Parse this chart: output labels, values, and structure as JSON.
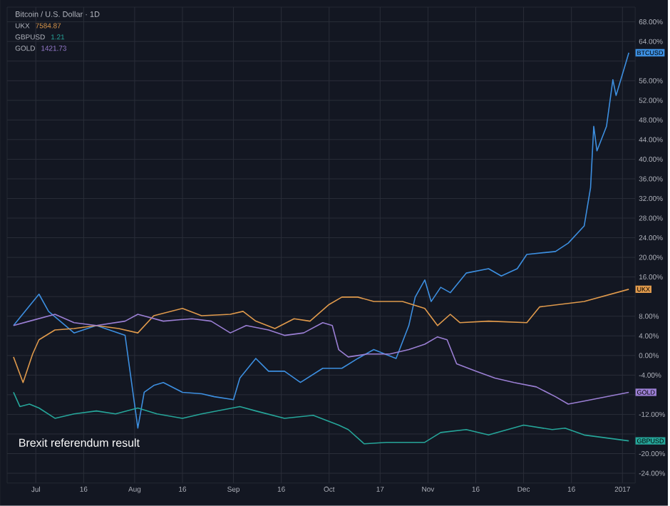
{
  "chart_data": {
    "type": "line",
    "title": "Bitcoin / U.S. Dollar · 1D",
    "annotations": [
      "Brexit referendum result",
      "7584.87",
      "1.21",
      "1421.73"
    ],
    "grid": true,
    "xlim": [
      "2016-06-22",
      "2017-01-05"
    ],
    "ylim": [
      -26,
      71
    ],
    "xticks": [
      {
        "value": "2016-07-01",
        "label": "Jul"
      },
      {
        "value": "2016-07-16",
        "label": "16"
      },
      {
        "value": "2016-08-01",
        "label": "Aug"
      },
      {
        "value": "2016-08-16",
        "label": "16"
      },
      {
        "value": "2016-09-01",
        "label": "Sep"
      },
      {
        "value": "2016-09-16",
        "label": "16"
      },
      {
        "value": "2016-10-01",
        "label": "Oct"
      },
      {
        "value": "2016-10-17",
        "label": "17"
      },
      {
        "value": "2016-11-01",
        "label": "Nov"
      },
      {
        "value": "2016-11-16",
        "label": "16"
      },
      {
        "value": "2016-12-01",
        "label": "Dec"
      },
      {
        "value": "2016-12-16",
        "label": "16"
      },
      {
        "value": "2017-01-01",
        "label": "2017"
      }
    ],
    "yticks": [
      {
        "value": -24,
        "label": "-24.00%"
      },
      {
        "value": -20,
        "label": "-20.00%"
      },
      {
        "value": -16,
        "label": null
      },
      {
        "value": -12,
        "label": "-12.00%"
      },
      {
        "value": -8,
        "label": null
      },
      {
        "value": -4,
        "label": "-4.00%"
      },
      {
        "value": 0,
        "label": "0.00%"
      },
      {
        "value": 4,
        "label": "4.00%"
      },
      {
        "value": 8,
        "label": "8.00%"
      },
      {
        "value": 12,
        "label": null
      },
      {
        "value": 16,
        "label": "16.00%"
      },
      {
        "value": 20,
        "label": "20.00%"
      },
      {
        "value": 24,
        "label": "24.00%"
      },
      {
        "value": 28,
        "label": "28.00%"
      },
      {
        "value": 32,
        "label": "32.00%"
      },
      {
        "value": 36,
        "label": "36.00%"
      },
      {
        "value": 40,
        "label": "40.00%"
      },
      {
        "value": 44,
        "label": "44.00%"
      },
      {
        "value": 48,
        "label": "48.00%"
      },
      {
        "value": 52,
        "label": "52.00%"
      },
      {
        "value": 56,
        "label": "56.00%"
      },
      {
        "value": 60,
        "label": null
      },
      {
        "value": 64,
        "label": "64.00%"
      },
      {
        "value": 68,
        "label": "68.00%"
      }
    ],
    "series": [
      {
        "name": "BTCUSD",
        "color": "#3d8fe0",
        "x": [
          "2016-06-24",
          "2016-07-02",
          "2016-07-05",
          "2016-07-13",
          "2016-07-20",
          "2016-07-29",
          "2016-08-02",
          "2016-08-04",
          "2016-08-07",
          "2016-08-10",
          "2016-08-16",
          "2016-08-22",
          "2016-08-26",
          "2016-09-01",
          "2016-09-03",
          "2016-09-08",
          "2016-09-12",
          "2016-09-17",
          "2016-09-22",
          "2016-09-29",
          "2016-10-05",
          "2016-10-10",
          "2016-10-15",
          "2016-10-22",
          "2016-10-26",
          "2016-10-28",
          "2016-10-31",
          "2016-11-02",
          "2016-11-05",
          "2016-11-08",
          "2016-11-13",
          "2016-11-20",
          "2016-11-24",
          "2016-11-29",
          "2016-12-02",
          "2016-12-11",
          "2016-12-15",
          "2016-12-20",
          "2016-12-22",
          "2016-12-23",
          "2016-12-24",
          "2016-12-27",
          "2016-12-29",
          "2016-12-30",
          "2017-01-02",
          "2017-01-03"
        ],
        "values": [
          6.1,
          12.5,
          9.0,
          4.6,
          6.1,
          4.1,
          -14.8,
          -7.5,
          -6.1,
          -5.5,
          -7.5,
          -7.8,
          -8.4,
          -9.0,
          -4.6,
          -0.6,
          -3.2,
          -3.2,
          -5.5,
          -2.6,
          -2.6,
          -0.6,
          1.2,
          -0.6,
          6.1,
          11.9,
          15.4,
          11.0,
          13.9,
          12.8,
          16.8,
          17.7,
          16.2,
          17.7,
          20.6,
          21.2,
          22.9,
          26.4,
          34.2,
          46.7,
          41.7,
          46.7,
          56.2,
          53.0,
          59.5,
          61.7
        ]
      },
      {
        "name": "UKX",
        "color": "#e09a4c",
        "x": [
          "2016-06-24",
          "2016-06-27",
          "2016-06-30",
          "2016-07-02",
          "2016-07-07",
          "2016-07-13",
          "2016-07-20",
          "2016-07-27",
          "2016-08-02",
          "2016-08-07",
          "2016-08-16",
          "2016-08-22",
          "2016-08-31",
          "2016-09-04",
          "2016-09-08",
          "2016-09-14",
          "2016-09-20",
          "2016-09-25",
          "2016-10-01",
          "2016-10-05",
          "2016-10-10",
          "2016-10-15",
          "2016-10-24",
          "2016-10-31",
          "2016-11-04",
          "2016-11-08",
          "2016-11-11",
          "2016-11-20",
          "2016-12-02",
          "2016-12-06",
          "2016-12-20",
          "2017-01-03"
        ],
        "values": [
          -0.3,
          -5.5,
          0.3,
          3.2,
          5.2,
          5.5,
          6.1,
          5.5,
          4.6,
          8.1,
          9.6,
          8.1,
          8.4,
          9.0,
          7.0,
          5.5,
          7.5,
          7.0,
          10.4,
          11.9,
          11.9,
          11.0,
          11.0,
          9.6,
          6.1,
          8.4,
          6.7,
          7.0,
          6.7,
          9.9,
          11.0,
          13.5
        ]
      },
      {
        "name": "GBPUSD",
        "color": "#26a69a",
        "x": [
          "2016-06-24",
          "2016-06-26",
          "2016-06-29",
          "2016-07-02",
          "2016-07-07",
          "2016-07-13",
          "2016-07-20",
          "2016-07-26",
          "2016-08-02",
          "2016-08-08",
          "2016-08-16",
          "2016-08-22",
          "2016-09-03",
          "2016-09-08",
          "2016-09-17",
          "2016-09-26",
          "2016-10-04",
          "2016-10-07",
          "2016-10-12",
          "2016-10-19",
          "2016-10-31",
          "2016-11-05",
          "2016-11-13",
          "2016-11-20",
          "2016-12-01",
          "2016-12-10",
          "2016-12-14",
          "2016-12-20",
          "2017-01-03"
        ],
        "values": [
          -7.5,
          -10.4,
          -9.9,
          -10.7,
          -12.8,
          -11.9,
          -11.3,
          -11.9,
          -10.7,
          -11.9,
          -12.8,
          -11.9,
          -10.4,
          -11.3,
          -12.8,
          -12.2,
          -14.2,
          -15.1,
          -18.0,
          -17.7,
          -17.7,
          -15.7,
          -15.1,
          -16.2,
          -14.2,
          -15.1,
          -14.8,
          -16.2,
          -17.4
        ]
      },
      {
        "name": "GOLD",
        "color": "#9b7fd4",
        "x": [
          "2016-06-24",
          "2016-06-29",
          "2016-07-07",
          "2016-07-13",
          "2016-07-20",
          "2016-07-29",
          "2016-08-02",
          "2016-08-10",
          "2016-08-19",
          "2016-08-25",
          "2016-08-31",
          "2016-09-05",
          "2016-09-12",
          "2016-09-17",
          "2016-09-23",
          "2016-09-29",
          "2016-10-02",
          "2016-10-04",
          "2016-10-07",
          "2016-10-13",
          "2016-10-20",
          "2016-10-26",
          "2016-10-31",
          "2016-11-04",
          "2016-11-07",
          "2016-11-10",
          "2016-11-16",
          "2016-11-22",
          "2016-11-28",
          "2016-12-05",
          "2016-12-11",
          "2016-12-15",
          "2016-12-20",
          "2017-01-03"
        ],
        "values": [
          6.1,
          7.0,
          8.4,
          6.7,
          6.1,
          7.0,
          8.4,
          7.0,
          7.5,
          7.0,
          4.6,
          6.1,
          5.2,
          4.1,
          4.6,
          6.7,
          6.1,
          1.2,
          -0.3,
          0.3,
          0.3,
          1.2,
          2.3,
          3.8,
          3.2,
          -1.7,
          -3.2,
          -4.6,
          -5.5,
          -6.4,
          -8.4,
          -9.9,
          -9.3,
          -7.5
        ]
      }
    ]
  }
}
